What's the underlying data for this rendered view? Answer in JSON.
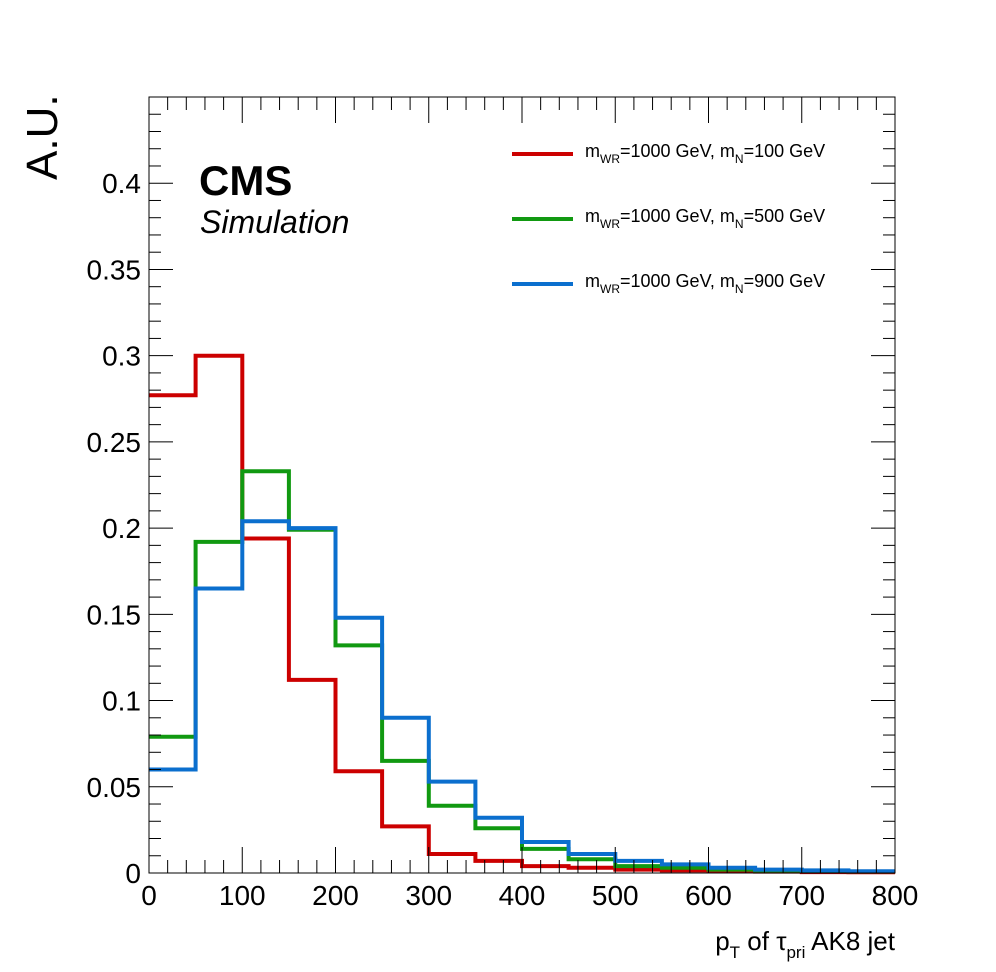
{
  "chart_data": {
    "type": "line",
    "style": "step-histogram",
    "xlabel": {
      "main": "p",
      "sub1": "T",
      "mid": " of ",
      "tau": "τ",
      "sub2": "pri",
      "tail": " AK8 jet"
    },
    "ylabel": "A.U.",
    "xlim": [
      0,
      800
    ],
    "ylim": [
      0,
      0.45
    ],
    "grid": false,
    "legend_position": "top-right",
    "x_ticks": [
      0,
      100,
      200,
      300,
      400,
      500,
      600,
      700,
      800
    ],
    "y_ticks": [
      0,
      0.05,
      0.1,
      0.15,
      0.2,
      0.25,
      0.3,
      0.35,
      0.4
    ],
    "y_tick_labels": [
      "0",
      "0.05",
      "0.1",
      "0.15",
      "0.2",
      "0.25",
      "0.3",
      "0.35",
      "0.4"
    ],
    "bin_edges": [
      0,
      50,
      100,
      150,
      200,
      250,
      300,
      350,
      400,
      450,
      500,
      550,
      600,
      650,
      700,
      750,
      800
    ],
    "series": [
      {
        "name": "m_WR=1000 GeV, m_N=100 GeV",
        "legend": {
          "m": "m",
          "s1": "WR",
          "a": "=1000 GeV, m",
          "s2": "N",
          "b": "=100 GeV"
        },
        "color": "#cc0000",
        "values": [
          0.277,
          0.3,
          0.194,
          0.112,
          0.059,
          0.027,
          0.011,
          0.007,
          0.004,
          0.003,
          0.002,
          0.0015,
          0.001,
          0.0008,
          0.0005,
          0.0004
        ]
      },
      {
        "name": "m_WR=1000 GeV, m_N=500 GeV",
        "legend": {
          "m": "m",
          "s1": "WR",
          "a": "=1000 GeV, m",
          "s2": "N",
          "b": "=500 GeV"
        },
        "color": "#119911",
        "values": [
          0.079,
          0.192,
          0.233,
          0.199,
          0.132,
          0.065,
          0.039,
          0.026,
          0.014,
          0.008,
          0.004,
          0.003,
          0.002,
          0.0015,
          0.001,
          0.0008
        ]
      },
      {
        "name": "m_WR=1000 GeV, m_N=900 GeV",
        "legend": {
          "m": "m",
          "s1": "WR",
          "a": "=1000 GeV, m",
          "s2": "N",
          "b": "=900 GeV"
        },
        "color": "#0b6fce",
        "values": [
          0.06,
          0.165,
          0.204,
          0.2,
          0.148,
          0.09,
          0.053,
          0.032,
          0.018,
          0.011,
          0.007,
          0.005,
          0.003,
          0.002,
          0.0015,
          0.001
        ]
      }
    ]
  },
  "labels": {
    "cms": "CMS",
    "simulation": "Simulation"
  }
}
